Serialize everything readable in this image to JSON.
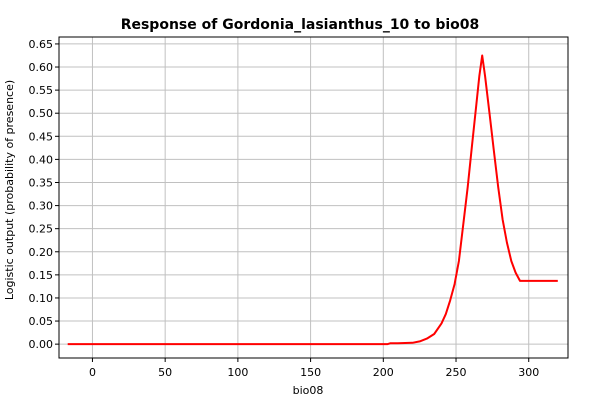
{
  "chart_data": {
    "type": "line",
    "title": "Response of Gordonia_lasianthus_10 to bio08",
    "xlabel": "bio08",
    "ylabel": "Logistic output (probability of presence)",
    "xlim": [
      -23,
      327
    ],
    "ylim": [
      -0.03,
      0.665
    ],
    "x_ticks": [
      0,
      50,
      100,
      150,
      200,
      250,
      300
    ],
    "x_tick_labels": [
      "0",
      "50",
      "100",
      "150",
      "200",
      "250",
      "300"
    ],
    "y_ticks": [
      0.0,
      0.05,
      0.1,
      0.15,
      0.2,
      0.25,
      0.3,
      0.35,
      0.4,
      0.45,
      0.5,
      0.55,
      0.6,
      0.65
    ],
    "y_tick_labels": [
      "0.00",
      "0.05",
      "0.10",
      "0.15",
      "0.20",
      "0.25",
      "0.30",
      "0.35",
      "0.40",
      "0.45",
      "0.50",
      "0.55",
      "0.60",
      "0.65"
    ],
    "grid": true,
    "series": [
      {
        "color": "#ff0000",
        "x": [
          -17,
          0,
          50,
          100,
          150,
          190,
          203,
          205,
          210,
          220,
          225,
          230,
          235,
          240,
          243,
          246,
          249,
          252,
          255,
          258,
          261,
          264,
          266,
          268,
          270,
          273,
          276,
          279,
          282,
          285,
          288,
          291,
          294,
          300,
          310,
          320
        ],
        "y": [
          0.0,
          0.0,
          0.0,
          0.0,
          0.0,
          0.0,
          0.0,
          0.002,
          0.002,
          0.003,
          0.006,
          0.012,
          0.022,
          0.045,
          0.065,
          0.095,
          0.13,
          0.18,
          0.26,
          0.34,
          0.43,
          0.52,
          0.58,
          0.625,
          0.58,
          0.5,
          0.42,
          0.34,
          0.27,
          0.22,
          0.18,
          0.155,
          0.137,
          0.137,
          0.137,
          0.137
        ]
      }
    ]
  }
}
